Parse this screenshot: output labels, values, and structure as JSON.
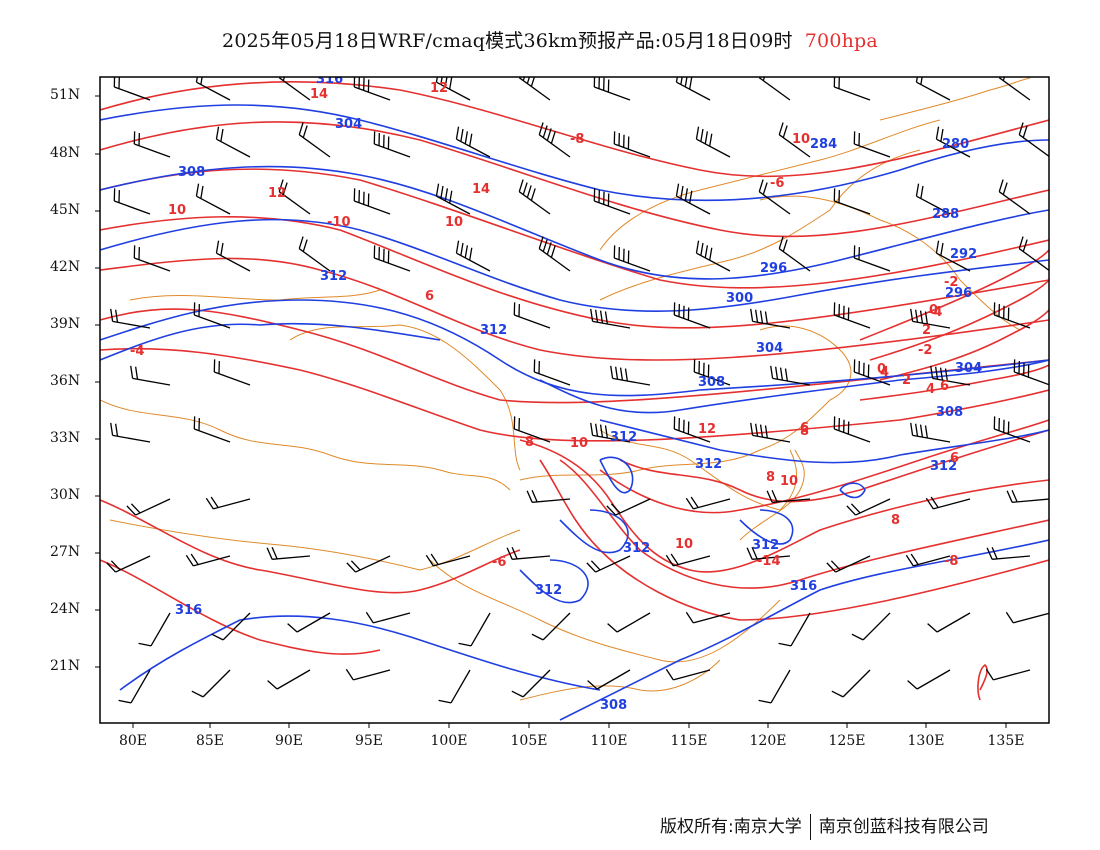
{
  "title": {
    "main": "2025年05月18日WRF/cmaq模式36km预报产品:05月18日09时",
    "level": "700hpa"
  },
  "axes": {
    "lat_labels": [
      "51N",
      "48N",
      "45N",
      "42N",
      "39N",
      "36N",
      "33N",
      "30N",
      "27N",
      "24N",
      "21N"
    ],
    "lon_labels": [
      "80E",
      "85E",
      "90E",
      "95E",
      "100E",
      "105E",
      "110E",
      "115E",
      "120E",
      "125E",
      "130E",
      "135E"
    ]
  },
  "colors": {
    "temperature_contour": "#e53030",
    "height_contour": "#1f3fe0",
    "border": "#e08a2a",
    "wind_barb": "#000000",
    "frame": "#000000"
  },
  "height_contour_labels": [
    "304",
    "308",
    "312",
    "312",
    "296",
    "300",
    "304",
    "308",
    "312",
    "312",
    "312",
    "312",
    "312",
    "316",
    "316",
    "284",
    "280",
    "288",
    "292",
    "296",
    "304",
    "308",
    "312",
    "308",
    "316"
  ],
  "temperature_contour_labels": [
    "-8",
    "-6",
    "-4",
    "-2",
    "0",
    "2",
    "4",
    "6",
    "8",
    "10",
    "12",
    "14",
    "-10",
    "10",
    "12",
    "14",
    "10",
    "6",
    "8",
    "10",
    "12",
    "6",
    "8",
    "10",
    "-14",
    "-8",
    "-6",
    "-4",
    "-2",
    "0",
    "2",
    "4",
    "6",
    "8",
    "10"
  ],
  "credit": {
    "left": "版权所有:南京大学",
    "right": "南京创蓝科技有限公司"
  }
}
